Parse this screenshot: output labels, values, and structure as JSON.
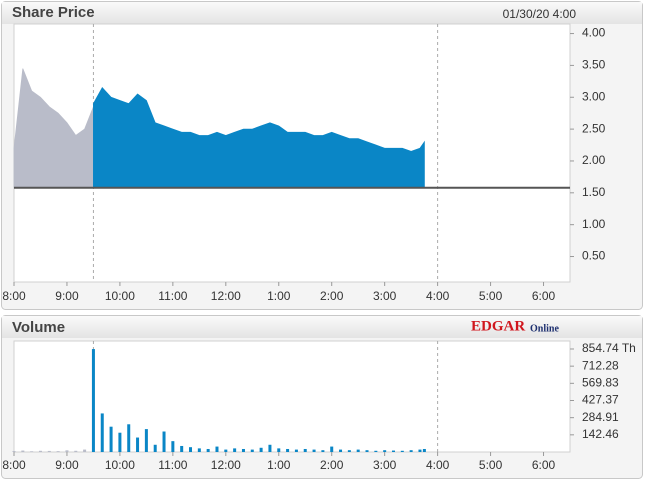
{
  "chart_data": [
    {
      "type": "area",
      "title": "Share Price",
      "subtitle": "01/30/20  4:00",
      "x": [
        480,
        490,
        500,
        510,
        520,
        530,
        540,
        550,
        560,
        570,
        580,
        590,
        600,
        610,
        620,
        630,
        640,
        650,
        660,
        670,
        680,
        690,
        700,
        710,
        720,
        730,
        740,
        750,
        760,
        770,
        780,
        790,
        800,
        810,
        820,
        830,
        840,
        850,
        860,
        870,
        880,
        890,
        900,
        910,
        920,
        930,
        940,
        945
      ],
      "series": [
        {
          "color": "#b9bcc9",
          "values": [
            2.2,
            3.45,
            3.1,
            3.0,
            2.85,
            2.75,
            2.6,
            2.4,
            2.5,
            2.85,
            null,
            null,
            null,
            null,
            null,
            null,
            null,
            null,
            null,
            null,
            null,
            null,
            null,
            null,
            null,
            null,
            null,
            null,
            null,
            null,
            null,
            null,
            null,
            null,
            null,
            null,
            null,
            null,
            null,
            null,
            null,
            null,
            null,
            null,
            null,
            null,
            null,
            null
          ]
        },
        {
          "color": "#0a86c6",
          "values": [
            null,
            null,
            null,
            null,
            null,
            null,
            null,
            null,
            null,
            2.9,
            3.15,
            3.0,
            2.95,
            2.9,
            3.05,
            2.95,
            2.6,
            2.55,
            2.5,
            2.45,
            2.45,
            2.4,
            2.4,
            2.45,
            2.4,
            2.45,
            2.5,
            2.5,
            2.55,
            2.6,
            2.55,
            2.45,
            2.45,
            2.45,
            2.4,
            2.4,
            2.45,
            2.4,
            2.35,
            2.35,
            2.3,
            2.25,
            2.2,
            2.2,
            2.2,
            2.15,
            2.2,
            2.3
          ]
        }
      ],
      "baseline": 1.58,
      "baseline_color": "#555555",
      "xlim": [
        480,
        1110
      ],
      "xticks": [
        {
          "value": 480,
          "label": "8:00"
        },
        {
          "value": 540,
          "label": "9:00"
        },
        {
          "value": 600,
          "label": "10:00"
        },
        {
          "value": 660,
          "label": "11:00"
        },
        {
          "value": 720,
          "label": "12:00"
        },
        {
          "value": 780,
          "label": "1:00"
        },
        {
          "value": 840,
          "label": "2:00"
        },
        {
          "value": 900,
          "label": "3:00"
        },
        {
          "value": 960,
          "label": "4:00"
        },
        {
          "value": 1020,
          "label": "5:00"
        },
        {
          "value": 1080,
          "label": "6:00"
        }
      ],
      "xlines": [
        570,
        960
      ],
      "ylim": [
        0.1,
        4.15
      ],
      "yticks": [
        {
          "value": 0.5,
          "label": "0.50"
        },
        {
          "value": 1,
          "label": "1.00"
        },
        {
          "value": 1.5,
          "label": "1.50"
        },
        {
          "value": 2,
          "label": "2.00"
        },
        {
          "value": 2.5,
          "label": "2.50"
        },
        {
          "value": 3,
          "label": "3.00"
        },
        {
          "value": 3.5,
          "label": "3.50"
        },
        {
          "value": 4,
          "label": "4.00"
        }
      ]
    },
    {
      "type": "bar",
      "title": "Volume",
      "annotations": [
        "EDGAR",
        "Online"
      ],
      "x": [
        480,
        490,
        500,
        510,
        520,
        530,
        540,
        550,
        560,
        570,
        580,
        590,
        600,
        610,
        620,
        630,
        640,
        650,
        660,
        670,
        680,
        690,
        700,
        710,
        720,
        730,
        740,
        750,
        760,
        770,
        780,
        790,
        800,
        810,
        820,
        830,
        840,
        850,
        860,
        870,
        880,
        890,
        900,
        910,
        920,
        930,
        940,
        945
      ],
      "series": [
        {
          "color": "#b9bcc9",
          "values": [
            8,
            12,
            6,
            10,
            9,
            7,
            14,
            10,
            20,
            null,
            null,
            null,
            null,
            null,
            null,
            null,
            null,
            null,
            null,
            null,
            null,
            null,
            null,
            null,
            null,
            null,
            null,
            null,
            null,
            null,
            null,
            null,
            null,
            null,
            null,
            null,
            null,
            null,
            null,
            null,
            null,
            null,
            null,
            null,
            null,
            null,
            null,
            null
          ]
        },
        {
          "color": "#0a86c6",
          "values": [
            null,
            null,
            null,
            null,
            null,
            null,
            null,
            null,
            null,
            854,
            320,
            210,
            160,
            230,
            120,
            190,
            60,
            170,
            90,
            50,
            40,
            30,
            25,
            45,
            20,
            30,
            25,
            20,
            35,
            60,
            30,
            25,
            20,
            25,
            20,
            15,
            45,
            20,
            15,
            20,
            15,
            10,
            15,
            12,
            10,
            15,
            20,
            25
          ]
        }
      ],
      "xlim": [
        480,
        1110
      ],
      "xticks": [
        {
          "value": 480,
          "label": "8:00"
        },
        {
          "value": 540,
          "label": "9:00"
        },
        {
          "value": 600,
          "label": "10:00"
        },
        {
          "value": 660,
          "label": "11:00"
        },
        {
          "value": 720,
          "label": "12:00"
        },
        {
          "value": 780,
          "label": "1:00"
        },
        {
          "value": 840,
          "label": "2:00"
        },
        {
          "value": 900,
          "label": "3:00"
        },
        {
          "value": 960,
          "label": "4:00"
        },
        {
          "value": 1020,
          "label": "5:00"
        },
        {
          "value": 1080,
          "label": "6:00"
        }
      ],
      "xlines": [
        570,
        960
      ],
      "ylim": [
        0,
        921
      ],
      "yticks": [
        142.46,
        284.91,
        427.37,
        569.83,
        712.28,
        {
          "value": 854.74,
          "label": "854.74 Th"
        }
      ]
    }
  ]
}
